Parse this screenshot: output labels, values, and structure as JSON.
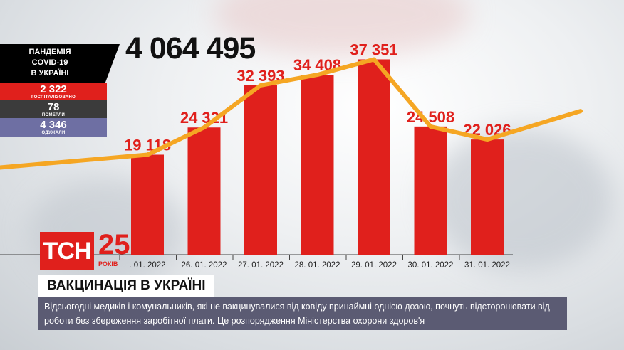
{
  "panel": {
    "title_lines": [
      "ПАНДЕМІЯ",
      "COVID-19",
      "В УКРАЇНІ"
    ],
    "hospitalized": {
      "value": "2 322",
      "label": "ГОСПІТАЛІЗОВАНО"
    },
    "died": {
      "value": "78",
      "label": "ПОМЕРЛИ"
    },
    "recovered": {
      "value": "4 346",
      "label": "ОДУЖАЛИ"
    }
  },
  "total": "4 064 495",
  "logo": {
    "text": "ТСН",
    "years": "25",
    "years_label": "РОКІВ"
  },
  "headline": "ВАКЦИНАЦІЯ В УКРАЇНІ",
  "ticker": "Відсьогодні медиків і комунальників, які не вакцинувалися від ковіду принаймні однією дозою, почнуть відсторонювати від роботи без збереження заробітної плати. Це розпорядження Міністерства охорони здоров'я",
  "colors": {
    "bar": "#e0201c",
    "line": "#f5a623",
    "label": "#e0201c"
  },
  "chart_data": {
    "type": "bar",
    "categories": [
      "25. 01. 2022",
      "26. 01. 2022",
      "27. 01. 2022",
      "28. 01. 2022",
      "29. 01. 2022",
      "30. 01. 2022",
      "31. 01. 2022"
    ],
    "category_labels": [
      ". 01. 2022",
      "26. 01. 2022",
      "27. 01. 2022",
      "28. 01. 2022",
      "29. 01. 2022",
      "30. 01. 2022",
      "31. 01. 2022"
    ],
    "values": [
      19118,
      24321,
      32393,
      34408,
      37351,
      24508,
      22026
    ],
    "value_labels": [
      "19 118",
      "24 321",
      "32 393",
      "34 408",
      "37 351",
      "24 508",
      "22 026"
    ],
    "trend_line": true,
    "ylim": [
      0,
      40000
    ]
  }
}
